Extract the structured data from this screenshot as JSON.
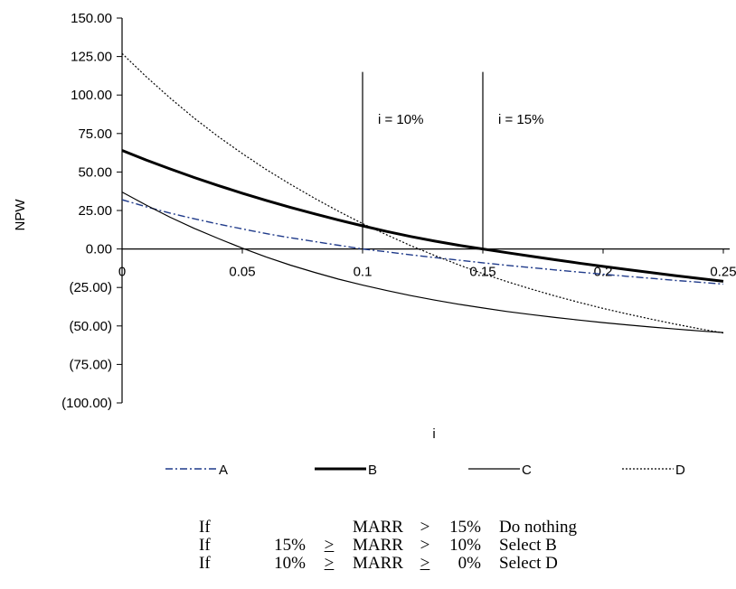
{
  "chart_data": {
    "type": "line",
    "xlabel": "i",
    "ylabel": "NPW",
    "xlim": [
      0,
      0.25
    ],
    "ylim": [
      -100,
      150
    ],
    "x_ticks": [
      "0",
      "0.05",
      "0.1",
      "0.15",
      "0.2",
      "0.25"
    ],
    "x_tick_values": [
      0,
      0.05,
      0.1,
      0.15,
      0.2,
      0.25
    ],
    "y_ticks": [
      "150.00",
      "125.00",
      "100.00",
      "75.00",
      "50.00",
      "25.00",
      "0.00",
      "(25.00)",
      "(50.00)",
      "(75.00)",
      "(100.00)"
    ],
    "y_tick_values": [
      150,
      125,
      100,
      75,
      50,
      25,
      0,
      -25,
      -50,
      -75,
      -100
    ],
    "x": [
      0,
      0.01,
      0.02,
      0.03,
      0.04,
      0.05,
      0.06,
      0.07,
      0.08,
      0.09,
      0.1,
      0.11,
      0.12,
      0.13,
      0.14,
      0.15,
      0.16,
      0.17,
      0.18,
      0.19,
      0.2,
      0.21,
      0.22,
      0.23,
      0.24,
      0.25
    ],
    "series": [
      {
        "name": "A",
        "color": "#1f3a8a",
        "style": "dashdot",
        "width": 1.4,
        "values": [
          32.0,
          27.4,
          23.3,
          19.6,
          16.2,
          13.0,
          10.0,
          7.3,
          4.8,
          2.4,
          0.0,
          -1.9,
          -3.8,
          -5.6,
          -7.3,
          -9.0,
          -10.6,
          -12.1,
          -13.6,
          -15.0,
          -16.4,
          -17.8,
          -19.1,
          -20.4,
          -21.6,
          -22.8
        ]
      },
      {
        "name": "B",
        "color": "#000000",
        "style": "solid",
        "width": 3,
        "values": [
          64.0,
          57.8,
          52.0,
          46.4,
          41.2,
          36.2,
          31.5,
          27.0,
          22.8,
          18.8,
          15.0,
          11.4,
          8.1,
          5.1,
          2.4,
          0.0,
          -2.4,
          -4.7,
          -7.0,
          -9.2,
          -11.3,
          -13.4,
          -15.4,
          -17.3,
          -19.2,
          -21.0
        ]
      },
      {
        "name": "C",
        "color": "#000000",
        "style": "solid",
        "width": 1.2,
        "values": [
          37.0,
          28.5,
          20.6,
          13.4,
          6.8,
          0.5,
          -5.3,
          -10.5,
          -15.2,
          -19.6,
          -23.5,
          -27.0,
          -30.3,
          -33.2,
          -35.9,
          -38.3,
          -40.6,
          -42.6,
          -44.5,
          -46.2,
          -47.8,
          -49.3,
          -50.7,
          -52.0,
          -53.2,
          -54.3
        ]
      },
      {
        "name": "D",
        "color": "#000000",
        "style": "dotted",
        "width": 1.2,
        "values": [
          127.0,
          112.0,
          98.0,
          85.0,
          73.0,
          62.0,
          51.5,
          42.0,
          33.0,
          24.5,
          16.5,
          9.2,
          2.2,
          -4.2,
          -10.3,
          -16.0,
          -21.2,
          -26.0,
          -30.5,
          -34.7,
          -38.6,
          -42.2,
          -45.6,
          -48.8,
          -51.8,
          -54.6
        ]
      }
    ],
    "vlines": [
      {
        "x": 0.1,
        "label": "i = 10%"
      },
      {
        "x": 0.15,
        "label": "i = 15%"
      }
    ],
    "vline_top": 115,
    "legend_placement": "bottom",
    "grid": false
  },
  "decision_table": {
    "rows": [
      [
        "If",
        "",
        "",
        "MARR",
        ">",
        "15%",
        "Do nothing"
      ],
      [
        "If",
        "15%",
        ">",
        "MARR",
        ">",
        "10%",
        "Select B"
      ],
      [
        "If",
        "10%",
        ">",
        "MARR",
        ">",
        "0%",
        "Select D"
      ]
    ],
    "underlined": [
      [
        1,
        2
      ],
      [
        2,
        2
      ],
      [
        2,
        4
      ]
    ]
  }
}
